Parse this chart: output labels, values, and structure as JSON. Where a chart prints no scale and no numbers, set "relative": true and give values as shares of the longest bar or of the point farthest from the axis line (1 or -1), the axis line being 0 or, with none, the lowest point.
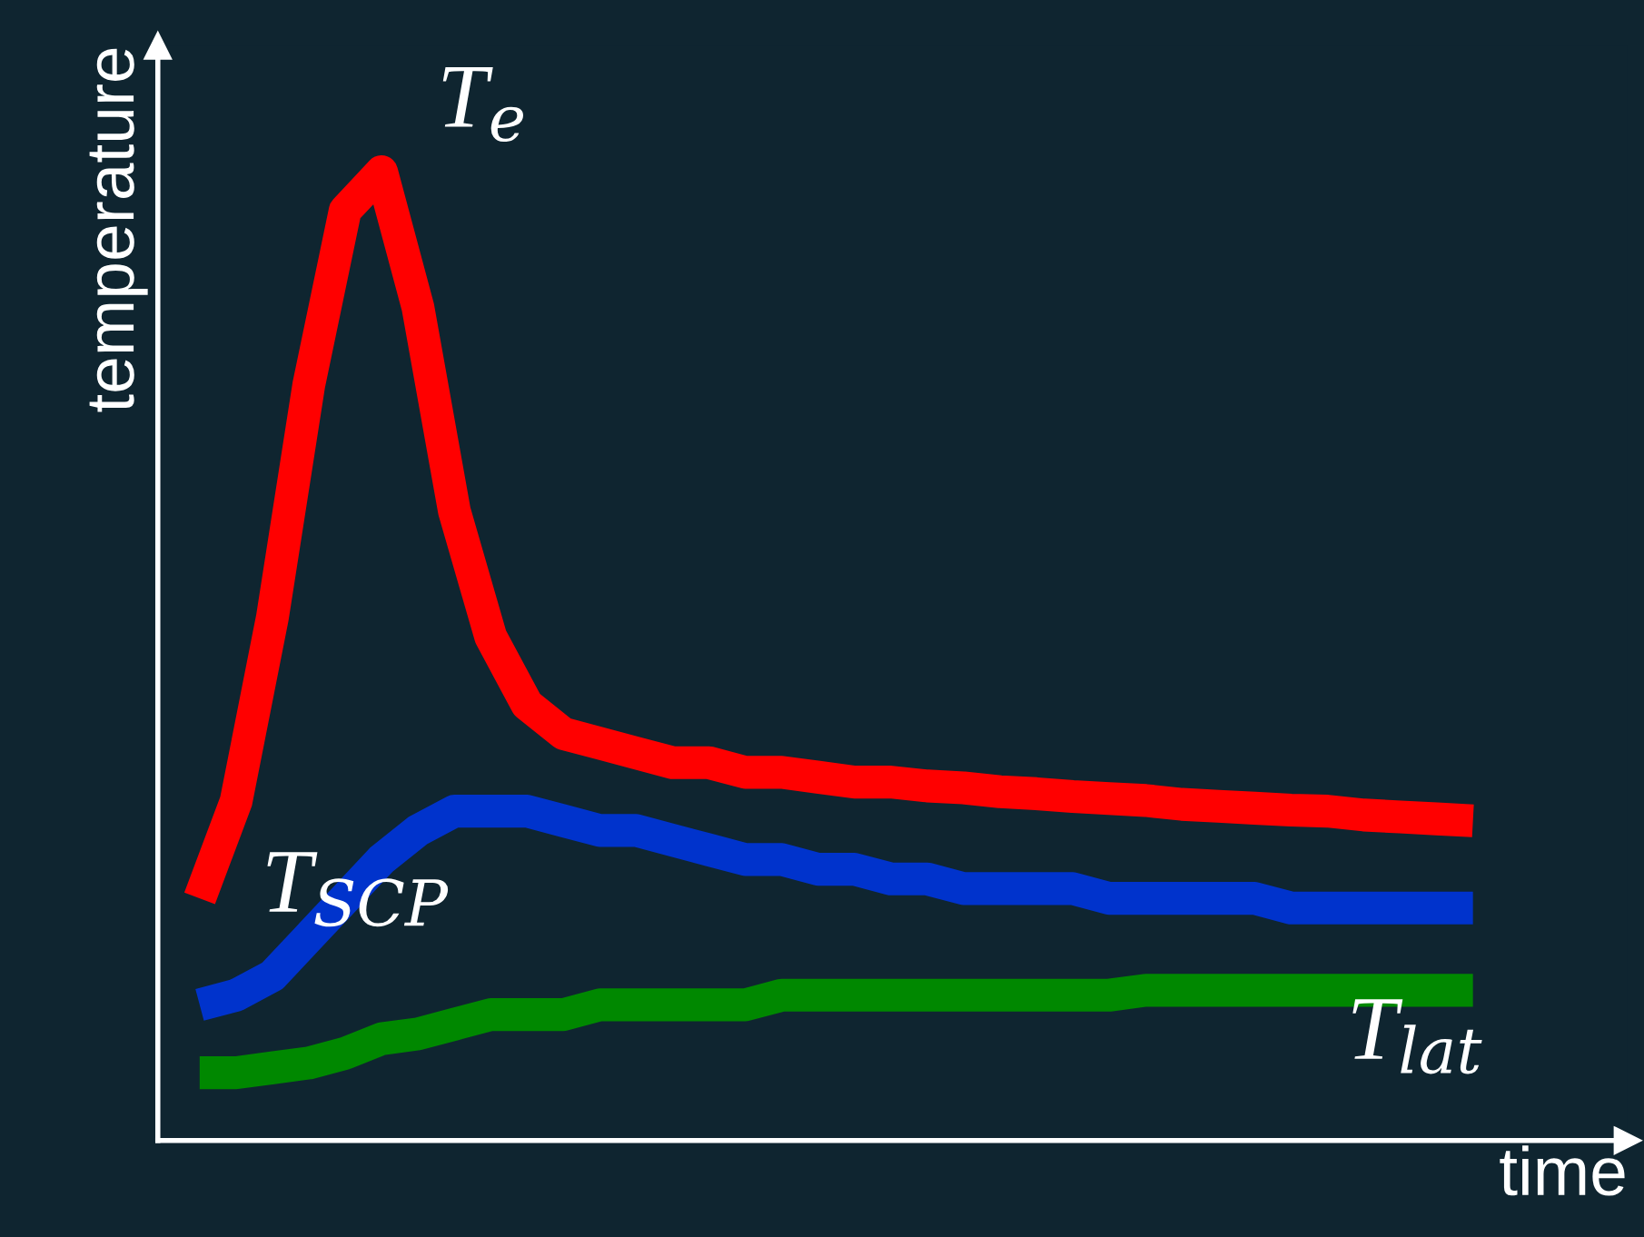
{
  "chart_data": {
    "type": "line",
    "relative": true,
    "xlabel": "time",
    "ylabel": "temperature",
    "legend": false,
    "marker": "none",
    "line_style": "solid",
    "categories": [
      null,
      null,
      null,
      null,
      null,
      null,
      null,
      null,
      null,
      null,
      null,
      null,
      null,
      null,
      null,
      null,
      null,
      null,
      null,
      null,
      null,
      null,
      null,
      null,
      null,
      null,
      null,
      null,
      null,
      null,
      null,
      null,
      null,
      null,
      null,
      null
    ],
    "series": [
      {
        "name": "T$_{e}$",
        "color": "#ff0000",
        "values": [
          0.25,
          0.35,
          0.54,
          0.78,
          0.96,
          1.0,
          0.86,
          0.65,
          0.52,
          0.45,
          0.42,
          0.41,
          0.4,
          0.39,
          0.39,
          0.38,
          0.38,
          0.375,
          0.37,
          0.37,
          0.366,
          0.364,
          0.36,
          0.358,
          0.355,
          0.353,
          0.351,
          0.347,
          0.345,
          0.343,
          0.341,
          0.34,
          0.336,
          0.334,
          0.332,
          0.33
        ]
      },
      {
        "name": "T$_{SCP}$",
        "color": "#0033cc",
        "values": [
          0.14,
          0.15,
          0.17,
          0.21,
          0.25,
          0.29,
          0.32,
          0.34,
          0.34,
          0.34,
          0.33,
          0.32,
          0.32,
          0.31,
          0.3,
          0.29,
          0.29,
          0.28,
          0.28,
          0.27,
          0.27,
          0.26,
          0.26,
          0.26,
          0.26,
          0.25,
          0.25,
          0.25,
          0.25,
          0.25,
          0.24,
          0.24,
          0.24,
          0.24,
          0.24,
          0.24
        ]
      },
      {
        "name": "T$_{lat}$",
        "color": "#008800",
        "values": [
          0.07,
          0.07,
          0.075,
          0.08,
          0.09,
          0.105,
          0.11,
          0.12,
          0.13,
          0.13,
          0.13,
          0.14,
          0.14,
          0.14,
          0.14,
          0.14,
          0.15,
          0.15,
          0.15,
          0.15,
          0.15,
          0.15,
          0.15,
          0.15,
          0.15,
          0.15,
          0.155,
          0.155,
          0.155,
          0.155,
          0.155,
          0.155,
          0.155,
          0.155,
          0.155,
          0.155
        ]
      }
    ]
  }
}
